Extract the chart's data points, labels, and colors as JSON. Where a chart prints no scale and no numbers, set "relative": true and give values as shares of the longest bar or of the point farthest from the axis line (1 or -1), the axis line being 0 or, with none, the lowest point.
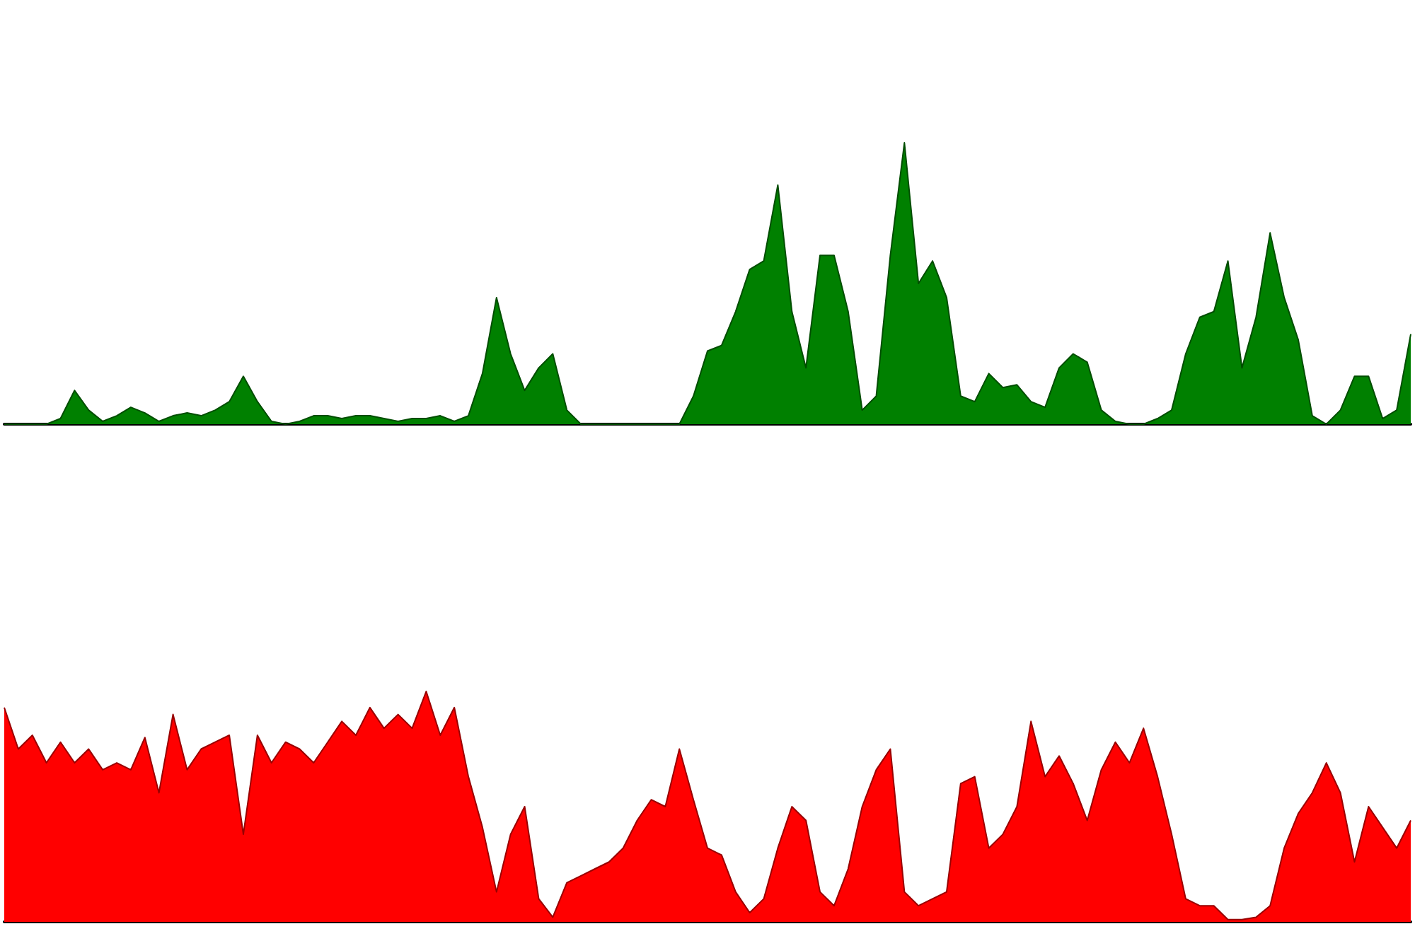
{
  "chart_data": [
    {
      "type": "area",
      "relative": true,
      "categories": [
        null,
        null,
        null,
        null,
        null,
        null,
        null,
        null,
        null,
        null,
        null,
        null,
        null,
        null,
        null,
        null,
        null,
        null,
        null,
        null,
        null,
        null,
        null,
        null,
        null,
        null,
        null,
        null,
        null,
        null,
        null,
        null,
        null,
        null,
        null,
        null,
        null,
        null,
        null,
        null,
        null,
        null,
        null,
        null,
        null,
        null,
        null,
        null,
        null,
        null,
        null,
        null,
        null,
        null,
        null,
        null,
        null,
        null,
        null,
        null,
        null,
        null,
        null,
        null,
        null,
        null,
        null,
        null,
        null,
        null,
        null,
        null,
        null,
        null,
        null,
        null,
        null,
        null,
        null,
        null,
        null,
        null,
        null,
        null,
        null,
        null,
        null,
        null,
        null,
        null,
        null,
        null,
        null,
        null,
        null,
        null,
        null,
        null,
        null,
        null,
        null
      ],
      "series": [
        {
          "color": "#008000",
          "values": [
            0,
            0,
            0,
            0,
            0.02,
            0.12,
            0.05,
            0.01,
            0.03,
            0.06,
            0.04,
            0.01,
            0.03,
            0.04,
            0.03,
            0.05,
            0.08,
            0.17,
            0.08,
            0.01,
            0,
            0.01,
            0.03,
            0.03,
            0.02,
            0.03,
            0.03,
            0.02,
            0.01,
            0.02,
            0.02,
            0.03,
            0.01,
            0.03,
            0.18,
            0.45,
            0.25,
            0.12,
            0.2,
            0.25,
            0.05,
            0,
            0,
            0,
            0,
            0,
            0,
            0,
            0,
            0.1,
            0.26,
            0.28,
            0.4,
            0.55,
            0.58,
            0.85,
            0.4,
            0.2,
            0.6,
            0.6,
            0.4,
            0.05,
            0.1,
            0.6,
            1,
            0.5,
            0.58,
            0.45,
            0.1,
            0.08,
            0.18,
            0.13,
            0.14,
            0.08,
            0.06,
            0.2,
            0.25,
            0.22,
            0.05,
            0.01,
            0,
            0,
            0.02,
            0.05,
            0.25,
            0.38,
            0.4,
            0.58,
            0.2,
            0.38,
            0.68,
            0.45,
            0.3,
            0.03,
            0,
            0.05,
            0.17,
            0.17,
            0.02,
            0.05,
            0.32
          ]
        }
      ]
    },
    {
      "type": "area",
      "relative": true,
      "categories": [
        null,
        null,
        null,
        null,
        null,
        null,
        null,
        null,
        null,
        null,
        null,
        null,
        null,
        null,
        null,
        null,
        null,
        null,
        null,
        null,
        null,
        null,
        null,
        null,
        null,
        null,
        null,
        null,
        null,
        null,
        null,
        null,
        null,
        null,
        null,
        null,
        null,
        null,
        null,
        null,
        null,
        null,
        null,
        null,
        null,
        null,
        null,
        null,
        null,
        null,
        null,
        null,
        null,
        null,
        null,
        null,
        null,
        null,
        null,
        null,
        null,
        null,
        null,
        null,
        null,
        null,
        null,
        null,
        null,
        null,
        null,
        null,
        null,
        null,
        null,
        null,
        null,
        null,
        null,
        null,
        null,
        null,
        null,
        null,
        null,
        null,
        null,
        null,
        null,
        null,
        null,
        null,
        null,
        null,
        null,
        null,
        null,
        null,
        null,
        null,
        null
      ],
      "series": [
        {
          "color": "#ff0000",
          "values": [
            0.93,
            0.75,
            0.81,
            0.69,
            0.78,
            0.69,
            0.75,
            0.66,
            0.69,
            0.66,
            0.8,
            0.56,
            0.9,
            0.66,
            0.75,
            0.78,
            0.81,
            0.38,
            0.81,
            0.69,
            0.78,
            0.75,
            0.69,
            0.78,
            0.87,
            0.81,
            0.93,
            0.84,
            0.9,
            0.84,
            1,
            0.81,
            0.93,
            0.63,
            0.41,
            0.13,
            0.38,
            0.5,
            0.1,
            0.02,
            0.17,
            0.2,
            0.23,
            0.26,
            0.32,
            0.44,
            0.53,
            0.5,
            0.75,
            0.53,
            0.32,
            0.29,
            0.13,
            0.04,
            0.1,
            0.32,
            0.5,
            0.44,
            0.13,
            0.07,
            0.23,
            0.5,
            0.66,
            0.75,
            0.13,
            0.07,
            0.1,
            0.13,
            0.6,
            0.63,
            0.32,
            0.38,
            0.5,
            0.87,
            0.63,
            0.72,
            0.6,
            0.44,
            0.66,
            0.78,
            0.69,
            0.84,
            0.63,
            0.38,
            0.1,
            0.07,
            0.07,
            0.01,
            0.01,
            0.02,
            0.07,
            0.32,
            0.47,
            0.56,
            0.69,
            0.56,
            0.26,
            0.5,
            0.41,
            0.32,
            0.44
          ]
        }
      ]
    }
  ]
}
